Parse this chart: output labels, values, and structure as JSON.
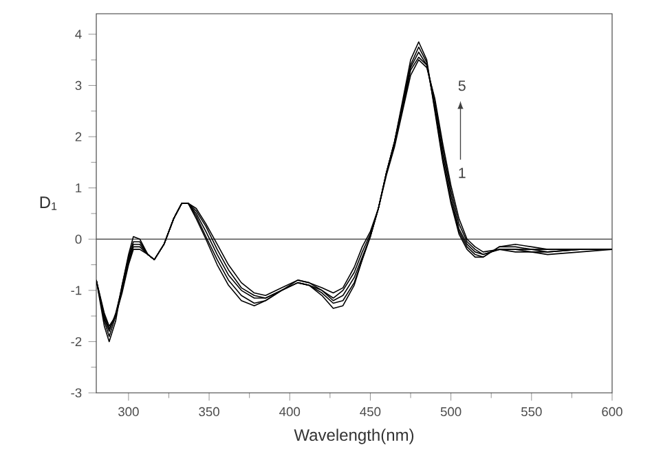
{
  "chart_data": {
    "type": "line",
    "xlabel": "Wavelength(nm)",
    "ylabel": "D$_{1}$",
    "xlim": [
      280,
      600
    ],
    "ylim": [
      -3,
      4.4
    ],
    "xticks": [
      300,
      350,
      400,
      450,
      500,
      550,
      600
    ],
    "yticks": [
      -3,
      -2,
      -1,
      0,
      1,
      2,
      3,
      4
    ],
    "annotations": [
      "5",
      "1"
    ],
    "ref_lines": [
      {
        "axis": "y",
        "value": 0,
        "color": "#555555"
      }
    ],
    "x": [
      280,
      285,
      288,
      292,
      296,
      300,
      303,
      307,
      312,
      316,
      322,
      328,
      333,
      337,
      342,
      348,
      355,
      362,
      370,
      378,
      385,
      395,
      405,
      412,
      420,
      427,
      433,
      440,
      445,
      450,
      455,
      460,
      465,
      470,
      475,
      480,
      485,
      490,
      495,
      500,
      505,
      510,
      515,
      520,
      530,
      540,
      550,
      560,
      580,
      600
    ],
    "series": [
      {
        "color": "#000000",
        "values": [
          -0.8,
          -1.45,
          -1.7,
          -1.5,
          -1.05,
          -0.5,
          -0.2,
          -0.2,
          -0.3,
          -0.4,
          -0.1,
          0.4,
          0.7,
          0.7,
          0.6,
          0.3,
          -0.1,
          -0.5,
          -0.85,
          -1.05,
          -1.1,
          -0.95,
          -0.8,
          -0.85,
          -0.95,
          -1.05,
          -0.95,
          -0.55,
          -0.15,
          0.15,
          0.6,
          1.25,
          1.8,
          2.5,
          3.2,
          3.5,
          3.35,
          2.75,
          1.85,
          1.05,
          0.4,
          0.0,
          -0.15,
          -0.25,
          -0.2,
          -0.25,
          -0.25,
          -0.3,
          -0.25,
          -0.2
        ]
      },
      {
        "color": "#000000",
        "values": [
          -0.8,
          -1.5,
          -1.75,
          -1.5,
          -1.0,
          -0.45,
          -0.15,
          -0.15,
          -0.3,
          -0.4,
          -0.1,
          0.4,
          0.7,
          0.7,
          0.55,
          0.25,
          -0.2,
          -0.6,
          -0.95,
          -1.1,
          -1.15,
          -1.0,
          -0.8,
          -0.85,
          -1.0,
          -1.15,
          -1.0,
          -0.65,
          -0.25,
          0.1,
          0.6,
          1.3,
          1.85,
          2.55,
          3.3,
          3.55,
          3.4,
          2.7,
          1.75,
          0.95,
          0.3,
          -0.05,
          -0.2,
          -0.3,
          -0.2,
          -0.2,
          -0.25,
          -0.25,
          -0.2,
          -0.2
        ]
      },
      {
        "color": "#000000",
        "values": [
          -0.8,
          -1.55,
          -1.8,
          -1.45,
          -0.95,
          -0.4,
          -0.1,
          -0.1,
          -0.3,
          -0.4,
          -0.1,
          0.4,
          0.7,
          0.7,
          0.5,
          0.15,
          -0.3,
          -0.7,
          -1.0,
          -1.15,
          -1.15,
          -1.0,
          -0.85,
          -0.9,
          -1.0,
          -1.2,
          -1.1,
          -0.75,
          -0.35,
          0.05,
          0.6,
          1.3,
          1.9,
          2.6,
          3.35,
          3.65,
          3.4,
          2.6,
          1.65,
          0.85,
          0.2,
          -0.1,
          -0.25,
          -0.3,
          -0.2,
          -0.2,
          -0.2,
          -0.25,
          -0.2,
          -0.2
        ]
      },
      {
        "color": "#000000",
        "values": [
          -0.8,
          -1.6,
          -1.9,
          -1.5,
          -0.9,
          -0.35,
          -0.05,
          -0.05,
          -0.3,
          -0.4,
          -0.1,
          0.4,
          0.7,
          0.7,
          0.45,
          0.05,
          -0.4,
          -0.8,
          -1.1,
          -1.25,
          -1.2,
          -1.0,
          -0.85,
          -0.9,
          -1.05,
          -1.25,
          -1.2,
          -0.85,
          -0.4,
          0.05,
          0.6,
          1.3,
          1.9,
          2.65,
          3.4,
          3.75,
          3.45,
          2.55,
          1.55,
          0.75,
          0.15,
          -0.15,
          -0.3,
          -0.35,
          -0.15,
          -0.15,
          -0.2,
          -0.2,
          -0.2,
          -0.2
        ]
      },
      {
        "color": "#000000",
        "values": [
          -0.8,
          -1.7,
          -2.0,
          -1.6,
          -0.9,
          -0.3,
          0.05,
          0.0,
          -0.3,
          -0.4,
          -0.1,
          0.4,
          0.7,
          0.7,
          0.4,
          0.0,
          -0.5,
          -0.9,
          -1.2,
          -1.3,
          -1.2,
          -1.0,
          -0.85,
          -0.9,
          -1.1,
          -1.35,
          -1.3,
          -0.9,
          -0.4,
          0.05,
          0.6,
          1.3,
          1.9,
          2.7,
          3.5,
          3.85,
          3.5,
          2.5,
          1.5,
          0.7,
          0.1,
          -0.2,
          -0.35,
          -0.35,
          -0.15,
          -0.1,
          -0.15,
          -0.2,
          -0.2,
          -0.2
        ]
      }
    ]
  }
}
